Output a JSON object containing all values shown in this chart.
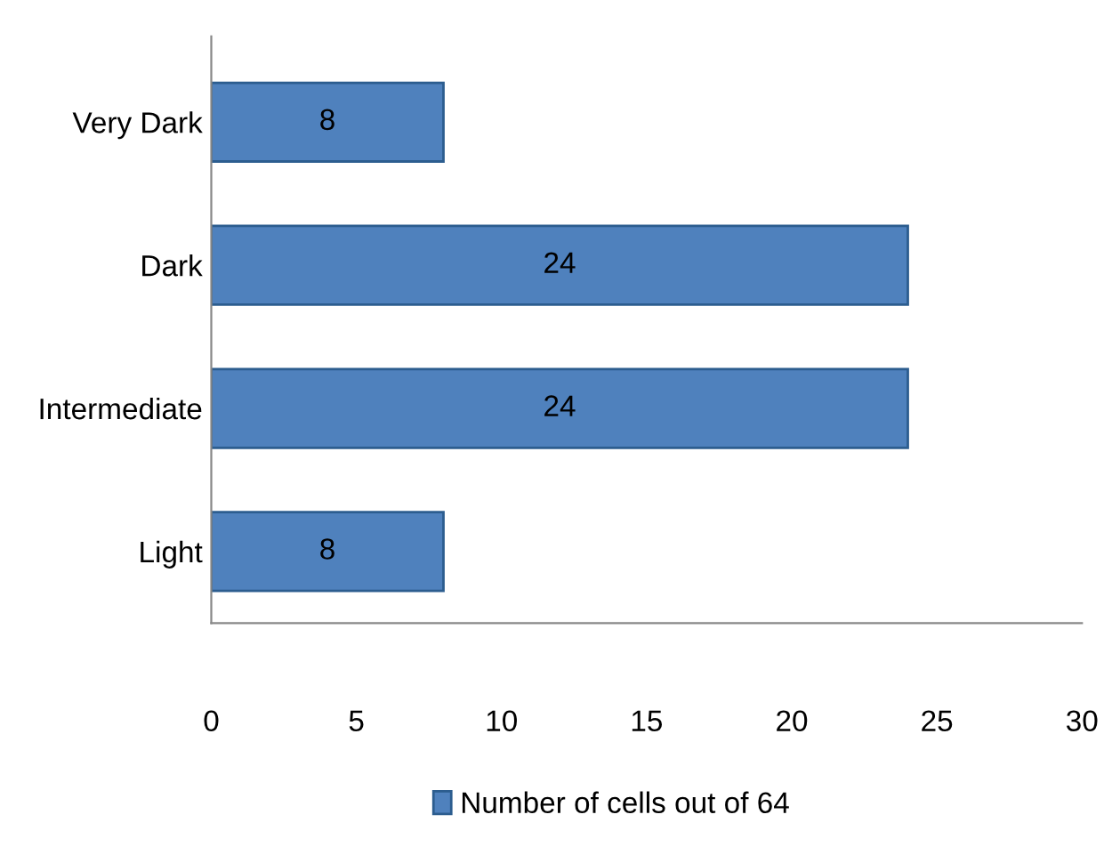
{
  "chart_data": {
    "type": "bar",
    "orientation": "horizontal",
    "categories": [
      "Very Dark",
      "Dark",
      "Intermediate",
      "Light"
    ],
    "series": [
      {
        "name": "Number of cells out of 64",
        "color": "#4f81bd",
        "values": [
          8,
          24,
          24,
          8
        ]
      }
    ],
    "xlim": [
      0,
      30
    ],
    "xticks": [
      0,
      5,
      10,
      15,
      20,
      25,
      30
    ],
    "data_labels": true,
    "legend": "bottom",
    "grid": false
  }
}
